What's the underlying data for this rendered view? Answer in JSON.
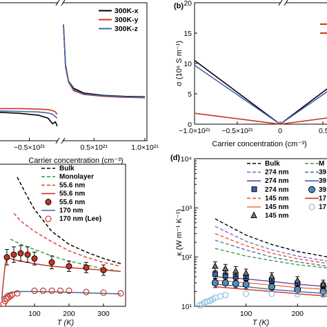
{
  "chart_data": [
    {
      "type": "line",
      "panel": "",
      "xlabel": "Carrier concentration (cm⁻³)",
      "ylabel": "",
      "x_ticks": [
        "−0.5×10²¹",
        "0.5×10²¹",
        "1.0×10²¹"
      ],
      "xlim": [
        -1e+21,
        1e+21
      ],
      "legend": {
        "placement": "top-right",
        "entries": [
          "300K-x",
          "300K-y",
          "300K-z"
        ]
      },
      "series": [
        {
          "name": "300K-x",
          "color": "#000000",
          "x": [
            -1e+21,
            -8e+20,
            -6e+20,
            -4e+20,
            -3e+20,
            -2.5e+20,
            -2.2e+20,
            -2e+20,
            2e+20,
            2.2e+20,
            2.5e+20,
            3e+20,
            4e+20,
            6e+20,
            8e+20,
            1e+21
          ],
          "y": [
            0.55,
            0.54,
            0.52,
            0.48,
            0.42,
            0.3,
            0.34,
            0.25,
            2.4,
            1.55,
            1.2,
            1.05,
            0.95,
            0.9,
            0.88,
            0.87
          ]
        },
        {
          "name": "300K-y",
          "color": "#cc3322",
          "x": [
            -1e+21,
            -8e+20,
            -6e+20,
            -4e+20,
            -3e+20,
            -2.5e+20,
            -2.2e+20,
            -2e+20,
            2e+20,
            2.2e+20,
            2.5e+20,
            3e+20,
            4e+20,
            6e+20,
            8e+20,
            1e+21
          ],
          "y": [
            0.62,
            0.62,
            0.62,
            0.61,
            0.6,
            0.58,
            0.55,
            0.5,
            2.4,
            1.5,
            1.18,
            1.0,
            0.92,
            0.88,
            0.86,
            0.85
          ]
        },
        {
          "name": "300K-z",
          "color": "#4466aa",
          "x": [
            -1e+21,
            -8e+20,
            -6e+20,
            -4e+20,
            -3e+20,
            -2.5e+20,
            -2.2e+20,
            -2e+20,
            2e+20,
            2.2e+20,
            2.5e+20,
            3e+20,
            4e+20,
            6e+20,
            8e+20,
            1e+21
          ],
          "y": [
            0.57,
            0.57,
            0.56,
            0.55,
            0.53,
            0.5,
            0.45,
            0.42,
            2.4,
            1.52,
            1.19,
            1.02,
            0.93,
            0.89,
            0.87,
            0.86
          ]
        }
      ]
    },
    {
      "type": "line",
      "panel": "(b)",
      "xlabel": "Carrier concentration (cm⁻³)",
      "ylabel": "σ (10⁶ S m⁻¹)",
      "x_ticks": [
        "−1.0×10²¹",
        "−0.5×10²¹",
        "0",
        "0.5"
      ],
      "y_ticks": [
        "0",
        "5",
        "10",
        "15",
        "20"
      ],
      "xlim": [
        -1e+21,
        1e+21
      ],
      "ylim": [
        0,
        20
      ],
      "series": [
        {
          "name": "",
          "color": "#000000",
          "x": [
            -1e+21,
            0,
            7e+20
          ],
          "y": [
            10.5,
            0,
            7.4
          ]
        },
        {
          "name": "",
          "color": "#4466aa",
          "x": [
            -1e+21,
            0,
            7e+20
          ],
          "y": [
            9.7,
            0,
            6.8
          ]
        },
        {
          "name": "",
          "color": "#cc3322",
          "x": [
            -1e+21,
            0,
            7e+20
          ],
          "y": [
            1.8,
            0,
            1.3
          ]
        }
      ]
    },
    {
      "type": "line",
      "panel": "",
      "xlabel": "T (K)",
      "ylabel": "",
      "x_ticks": [
        "100",
        "200",
        "300"
      ],
      "xlim": [
        0,
        360
      ],
      "ylim": [
        0,
        110
      ],
      "legend": {
        "placement": "top-right",
        "entries": [
          "Bulk",
          "Monolayer",
          "55.6 nm",
          "55.6 nm",
          "55.6 nm",
          "170 nm",
          "170 nm (Lee)"
        ]
      },
      "series": [
        {
          "name": "Bulk",
          "style": "dashed",
          "color": "#000000",
          "x": [
            50,
            75,
            100,
            150,
            200,
            250,
            300,
            350
          ],
          "y": [
            100,
            87,
            75,
            58,
            48,
            42,
            37,
            33
          ]
        },
        {
          "name": "Monolayer",
          "style": "dashed",
          "color": "#449944",
          "x": [
            30,
            60,
            100,
            150,
            200,
            250,
            300,
            350
          ],
          "y": [
            52,
            48,
            44,
            39,
            35,
            32,
            29,
            27
          ]
        },
        {
          "name": "55.6 nm",
          "style": "dashed",
          "color": "#dd4444",
          "x": [
            40,
            60,
            100,
            150,
            200,
            250,
            300,
            350
          ],
          "y": [
            72,
            66,
            58,
            50,
            43,
            38,
            34,
            31
          ]
        },
        {
          "name": "55.6 nm",
          "style": "solid",
          "color": "#cc3322",
          "x": [
            5,
            10,
            15,
            20,
            30,
            40,
            60,
            100,
            150,
            200,
            250,
            300,
            350
          ],
          "y": [
            5,
            20,
            32,
            38,
            37,
            36,
            35,
            33,
            31,
            30,
            29,
            28,
            27
          ]
        },
        {
          "name": "55.6 nm",
          "style": "markers",
          "marker": "filled-circle",
          "color": "#cc3322",
          "x": [
            20,
            40,
            60,
            80,
            100,
            150,
            200,
            250,
            300
          ],
          "y": [
            38,
            40,
            41,
            40,
            37,
            34,
            31,
            30,
            28
          ],
          "err": [
            6,
            6,
            6,
            6,
            5,
            5,
            4,
            4,
            4
          ]
        },
        {
          "name": "170 nm",
          "style": "solid",
          "color": "#4466aa",
          "x": [
            5,
            20,
            40,
            60,
            100,
            150,
            200,
            250,
            300,
            350
          ],
          "y": [
            6,
            10,
            11,
            11.5,
            11.5,
            11.2,
            10.8,
            10.4,
            10,
            9.6
          ]
        },
        {
          "name": "170 nm (Lee)",
          "style": "markers",
          "marker": "open-circle",
          "color": "#cc3322",
          "x": [
            10,
            15,
            20,
            25,
            30,
            35,
            50,
            100,
            125,
            150,
            175,
            200,
            250,
            300,
            350
          ],
          "y": [
            2,
            4,
            6,
            7,
            8,
            9,
            10,
            12,
            12,
            12,
            12,
            12,
            11,
            10.5,
            10
          ]
        }
      ]
    },
    {
      "type": "line",
      "panel": "(d)",
      "xlabel": "T (K)",
      "ylabel": "κ (W m⁻¹ K⁻¹)",
      "x_ticks": [
        "100",
        "200"
      ],
      "y_ticks": [
        "10¹",
        "10²",
        "10³",
        "10⁴"
      ],
      "xlim": [
        0,
        260
      ],
      "ylim": [
        10,
        10000
      ],
      "y_scale": "log",
      "legend": {
        "placement": "top-right",
        "entries": [
          "Bulk",
          "274 nm",
          "274 nm",
          "274 nm",
          "145 nm",
          "145 nm",
          "145 nm",
          "M",
          "39",
          "39",
          "39",
          "17",
          "17"
        ]
      },
      "series": [
        {
          "name": "Bulk",
          "style": "dashed",
          "color": "#000000",
          "x": [
            40,
            100,
            150,
            200,
            260
          ],
          "y": [
            600,
            280,
            180,
            130,
            100
          ]
        },
        {
          "name": "274 nm",
          "style": "dashed",
          "color": "#8866cc",
          "x": [
            40,
            100,
            150,
            200,
            260
          ],
          "y": [
            420,
            210,
            140,
            105,
            82
          ]
        },
        {
          "name": "274 nm",
          "style": "solid",
          "color": "#6644aa",
          "x": [
            40,
            100,
            150,
            200,
            260
          ],
          "y": [
            40,
            36,
            32,
            28,
            25
          ]
        },
        {
          "name": "274 nm",
          "style": "markers",
          "marker": "square",
          "color": "#4466aa",
          "x": [
            40,
            60,
            80,
            100,
            150,
            200,
            250
          ],
          "y": [
            45,
            42,
            40,
            38,
            33,
            29,
            26
          ],
          "err": [
            8,
            8,
            7,
            7,
            6,
            5,
            5
          ]
        },
        {
          "name": "145 nm",
          "style": "dashed",
          "color": "#ee5533",
          "x": [
            40,
            100,
            150,
            200,
            260
          ],
          "y": [
            300,
            170,
            120,
            92,
            74
          ]
        },
        {
          "name": "145 nm",
          "style": "solid",
          "color": "#ee7744",
          "x": [
            40,
            100,
            150,
            200,
            260
          ],
          "y": [
            34,
            30,
            27,
            24,
            22
          ]
        },
        {
          "name": "145 nm",
          "style": "markers",
          "marker": "triangle",
          "color": "#555555",
          "x": [
            40,
            60,
            80,
            100,
            150,
            200,
            250
          ],
          "y": [
            65,
            58,
            52,
            47,
            40,
            33,
            28
          ],
          "err": [
            15,
            13,
            12,
            10,
            8,
            7,
            6
          ]
        },
        {
          "name": "M",
          "style": "dashed",
          "color": "#449944",
          "x": [
            40,
            100,
            150,
            200,
            260
          ],
          "y": [
            150,
            105,
            85,
            70,
            60
          ]
        },
        {
          "name": "39",
          "style": "dashed",
          "color": "#447799",
          "x": [
            40,
            100,
            150,
            200,
            260
          ],
          "y": [
            220,
            140,
            100,
            80,
            65
          ]
        },
        {
          "name": "39",
          "style": "solid",
          "color": "#4466aa",
          "x": [
            40,
            100,
            150,
            200,
            260
          ],
          "y": [
            28,
            25,
            22,
            20,
            18
          ]
        },
        {
          "name": "39",
          "style": "markers",
          "marker": "filled-circle",
          "color": "#4477aa",
          "x": [
            40,
            60,
            80,
            100,
            150,
            200,
            250
          ],
          "y": [
            30,
            30,
            29,
            28,
            25,
            22,
            20
          ],
          "err": [
            6,
            6,
            5,
            5,
            4,
            4,
            4
          ]
        },
        {
          "name": "17",
          "style": "solid",
          "color": "#cc3322",
          "x": [
            40,
            100,
            150,
            200,
            260
          ],
          "y": [
            25,
            22,
            20,
            18,
            16
          ]
        },
        {
          "name": "17",
          "style": "markers",
          "marker": "open-circle",
          "color": "#88c0e0",
          "x": [
            10,
            15,
            20,
            25,
            30,
            35,
            40,
            50,
            60,
            100,
            150,
            200,
            250
          ],
          "y": [
            10.5,
            11,
            12,
            12.5,
            13,
            14,
            15,
            16,
            17,
            18,
            18,
            17.5,
            17
          ]
        }
      ]
    }
  ]
}
